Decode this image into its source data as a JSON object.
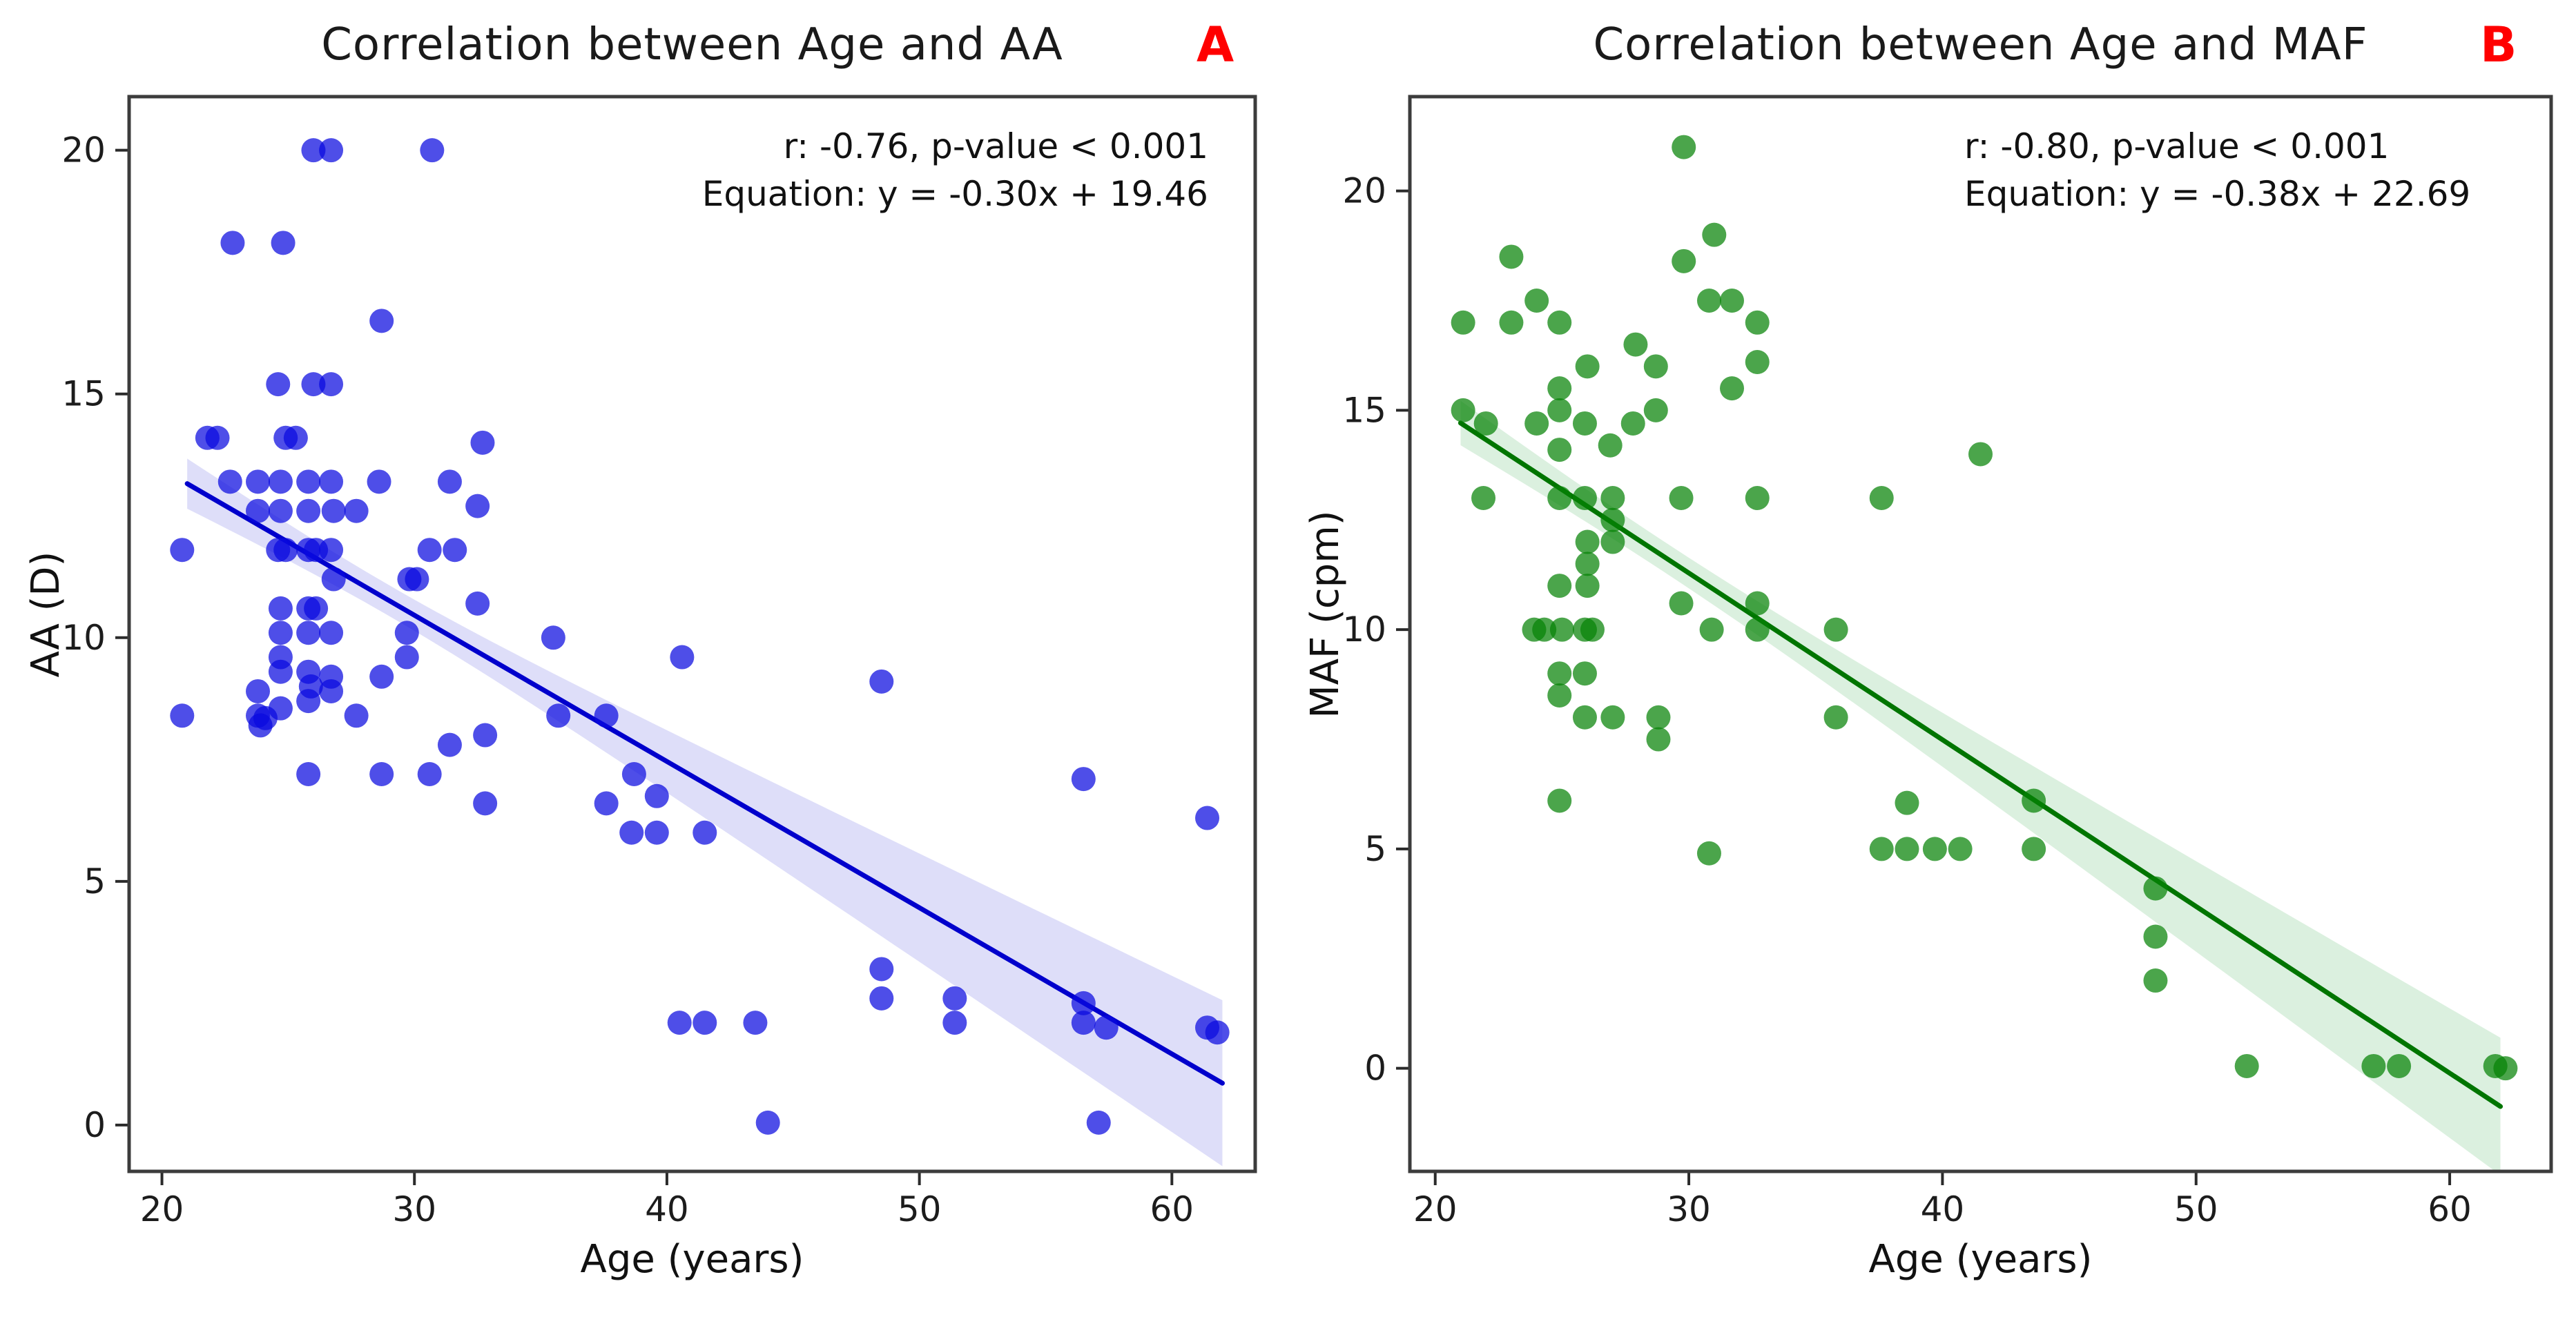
{
  "figure": {
    "panels": [
      {
        "letter": "A",
        "title": "Correlation between Age and AA",
        "annotation_line1": "r: -0.76, p-value < 0.001",
        "annotation_line2": "Equation: y = -0.30x + 19.46",
        "xlabel": "Age (years)",
        "ylabel": "AA (D)"
      },
      {
        "letter": "B",
        "title": "Correlation between Age and MAF",
        "annotation_line1": "r: -0.80, p-value < 0.001",
        "annotation_line2": "Equation: y = -0.38x + 22.69",
        "xlabel": "Age (years)",
        "ylabel": "MAF (cpm)"
      }
    ]
  },
  "chart_data": [
    {
      "type": "scatter",
      "panel_label": "A",
      "title": "Correlation between Age and AA",
      "xlabel": "Age (years)",
      "ylabel": "AA (D)",
      "x_ticks": [
        20,
        30,
        40,
        50,
        60
      ],
      "y_ticks": [
        0,
        5,
        10,
        15,
        20
      ],
      "xlim": [
        18.7,
        63.3
      ],
      "ylim": [
        -0.95,
        21.1
      ],
      "legend": "none",
      "grid": false,
      "r_value": -0.76,
      "p_value": "< 0.001",
      "regression": {
        "slope": -0.3,
        "intercept": 19.46,
        "x_start": 21,
        "x_end": 62
      },
      "ci_band": {
        "center": 29,
        "spread": 3500,
        "scale": 3.0,
        "n": 90
      },
      "colors": {
        "dot": "#0a0adf",
        "line": "#0000cc",
        "band": "#8888e8"
      },
      "points": [
        [
          26,
          20
        ],
        [
          26.7,
          20
        ],
        [
          30.7,
          20
        ],
        [
          22.8,
          18.1
        ],
        [
          24.8,
          18.1
        ],
        [
          28.7,
          16.5
        ],
        [
          24.6,
          15.2
        ],
        [
          26,
          15.2
        ],
        [
          26.7,
          15.2
        ],
        [
          21.8,
          14.1
        ],
        [
          22.2,
          14.1
        ],
        [
          24.9,
          14.1
        ],
        [
          25.3,
          14.1
        ],
        [
          32.7,
          14
        ],
        [
          22.7,
          13.2
        ],
        [
          23.8,
          13.2
        ],
        [
          24.7,
          13.2
        ],
        [
          25.8,
          13.2
        ],
        [
          26.7,
          13.2
        ],
        [
          28.6,
          13.2
        ],
        [
          31.4,
          13.2
        ],
        [
          23.8,
          12.6
        ],
        [
          24.7,
          12.6
        ],
        [
          25.8,
          12.6
        ],
        [
          26.8,
          12.6
        ],
        [
          27.7,
          12.6
        ],
        [
          32.5,
          12.7
        ],
        [
          20.8,
          11.8
        ],
        [
          24.6,
          11.8
        ],
        [
          24.9,
          11.8
        ],
        [
          25.8,
          11.8
        ],
        [
          26.1,
          11.8
        ],
        [
          26.7,
          11.8
        ],
        [
          30.6,
          11.8
        ],
        [
          31.6,
          11.8
        ],
        [
          26.8,
          11.2
        ],
        [
          29.8,
          11.2
        ],
        [
          30.1,
          11.2
        ],
        [
          24.7,
          10.6
        ],
        [
          25.8,
          10.6
        ],
        [
          26.1,
          10.6
        ],
        [
          32.5,
          10.7
        ],
        [
          24.7,
          10.1
        ],
        [
          25.8,
          10.1
        ],
        [
          26.7,
          10.1
        ],
        [
          29.7,
          10.1
        ],
        [
          35.5,
          10
        ],
        [
          24.7,
          9.6
        ],
        [
          29.7,
          9.6
        ],
        [
          40.6,
          9.6
        ],
        [
          24.7,
          9.3
        ],
        [
          25.8,
          9.3
        ],
        [
          25.9,
          9
        ],
        [
          26.7,
          9.2
        ],
        [
          28.7,
          9.2
        ],
        [
          23.8,
          8.9
        ],
        [
          26.7,
          8.9
        ],
        [
          25.8,
          8.7
        ],
        [
          20.8,
          8.4
        ],
        [
          23.8,
          8.4
        ],
        [
          23.9,
          8.2
        ],
        [
          24.1,
          8.35
        ],
        [
          24.7,
          8.55
        ],
        [
          27.7,
          8.4
        ],
        [
          35.7,
          8.4
        ],
        [
          37.6,
          8.4
        ],
        [
          32.8,
          8
        ],
        [
          31.4,
          7.8
        ],
        [
          25.8,
          7.2
        ],
        [
          28.7,
          7.2
        ],
        [
          30.6,
          7.2
        ],
        [
          38.7,
          7.2
        ],
        [
          56.5,
          7.1
        ],
        [
          32.8,
          6.6
        ],
        [
          37.6,
          6.6
        ],
        [
          39.6,
          6.75
        ],
        [
          61.4,
          6.3
        ],
        [
          38.6,
          6
        ],
        [
          39.6,
          6
        ],
        [
          41.5,
          6
        ],
        [
          48.5,
          9.1
        ],
        [
          48.5,
          3.2
        ],
        [
          48.5,
          2.6
        ],
        [
          51.4,
          2.6
        ],
        [
          51.4,
          2.1
        ],
        [
          56.5,
          2.5
        ],
        [
          56.5,
          2.1
        ],
        [
          57.4,
          2
        ],
        [
          40.5,
          2.1
        ],
        [
          41.5,
          2.1
        ],
        [
          43.5,
          2.1
        ],
        [
          61.4,
          2
        ],
        [
          61.8,
          1.9
        ],
        [
          44,
          0.05
        ],
        [
          57.1,
          0.05
        ]
      ]
    },
    {
      "type": "scatter",
      "panel_label": "B",
      "title": "Correlation between Age and MAF",
      "xlabel": "Age (years)",
      "ylabel": "MAF (cpm)",
      "x_ticks": [
        20,
        30,
        40,
        50,
        60
      ],
      "y_ticks": [
        0,
        5,
        10,
        15,
        20
      ],
      "xlim": [
        19.0,
        64.0
      ],
      "ylim": [
        -2.35,
        22.15
      ],
      "legend": "none",
      "grid": false,
      "r_value": -0.8,
      "p_value": "< 0.001",
      "regression": {
        "slope": -0.38,
        "intercept": 22.69,
        "x_start": 21,
        "x_end": 62
      },
      "ci_band": {
        "center": 29,
        "spread": 4200,
        "scale": 3.0,
        "n": 75
      },
      "colors": {
        "dot": "#058205",
        "line": "#007500",
        "band": "#7dc98d"
      },
      "points": [
        [
          29.8,
          21
        ],
        [
          31,
          19
        ],
        [
          29.8,
          18.4
        ],
        [
          23,
          18.5
        ],
        [
          24,
          17.5
        ],
        [
          30.8,
          17.5
        ],
        [
          31.7,
          17.5
        ],
        [
          21.1,
          17
        ],
        [
          23,
          17
        ],
        [
          24.9,
          17
        ],
        [
          32.7,
          17
        ],
        [
          27.9,
          16.5
        ],
        [
          26,
          16
        ],
        [
          28.7,
          16
        ],
        [
          32.7,
          16.1
        ],
        [
          31.7,
          15.5
        ],
        [
          24.9,
          15.5
        ],
        [
          24.9,
          15
        ],
        [
          21.1,
          15
        ],
        [
          28.7,
          15
        ],
        [
          22,
          14.7
        ],
        [
          24,
          14.7
        ],
        [
          25.9,
          14.7
        ],
        [
          27.8,
          14.7
        ],
        [
          24.9,
          14.1
        ],
        [
          26.9,
          14.2
        ],
        [
          41.5,
          14
        ],
        [
          21.9,
          13
        ],
        [
          24.9,
          13
        ],
        [
          25.9,
          13
        ],
        [
          27,
          13
        ],
        [
          29.7,
          13
        ],
        [
          32.7,
          13
        ],
        [
          37.6,
          13
        ],
        [
          27,
          12.5
        ],
        [
          26,
          12
        ],
        [
          27,
          12
        ],
        [
          26,
          11.5
        ],
        [
          24.9,
          11
        ],
        [
          26,
          11
        ],
        [
          29.7,
          10.6
        ],
        [
          32.7,
          10.6
        ],
        [
          23.9,
          10
        ],
        [
          24.3,
          10
        ],
        [
          25,
          10
        ],
        [
          25.9,
          10
        ],
        [
          26.2,
          10
        ],
        [
          30.9,
          10
        ],
        [
          32.7,
          10
        ],
        [
          35.8,
          10
        ],
        [
          24.9,
          9
        ],
        [
          25.9,
          9
        ],
        [
          24.9,
          8.5
        ],
        [
          25.9,
          8
        ],
        [
          27,
          8
        ],
        [
          28.8,
          8
        ],
        [
          35.8,
          8
        ],
        [
          28.8,
          7.5
        ],
        [
          24.9,
          6.1
        ],
        [
          38.6,
          6.05
        ],
        [
          43.6,
          6.1
        ],
        [
          30.8,
          4.9
        ],
        [
          37.6,
          5
        ],
        [
          38.6,
          5
        ],
        [
          39.7,
          5
        ],
        [
          40.7,
          5
        ],
        [
          43.6,
          5
        ],
        [
          48.4,
          4.1
        ],
        [
          48.4,
          3
        ],
        [
          48.4,
          2
        ],
        [
          52,
          0.05
        ],
        [
          57,
          0.05
        ],
        [
          58,
          0.05
        ],
        [
          61.8,
          0.05
        ],
        [
          62.2,
          0
        ]
      ]
    }
  ]
}
